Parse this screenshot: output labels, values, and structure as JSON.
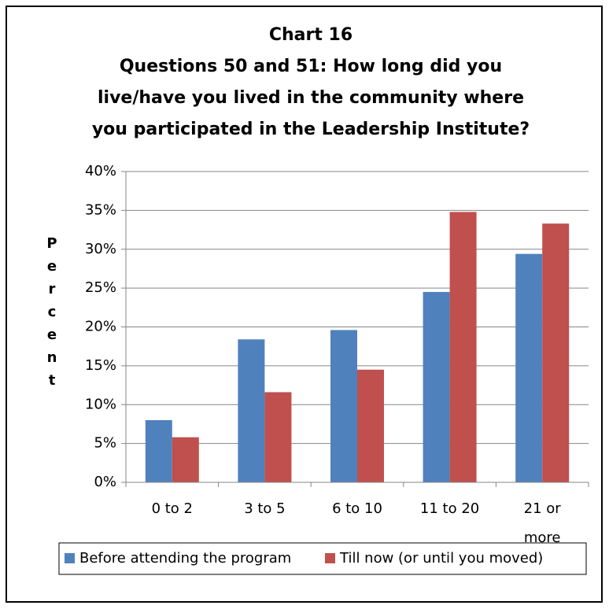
{
  "chart_data": {
    "type": "bar",
    "title": [
      "Chart 16",
      "Questions 50 and 51: How long did you",
      "live/have you lived in the community where",
      "you participated in the Leadership Institute?"
    ],
    "y_label": "Percent",
    "categories": [
      "0 to 2",
      "3 to 5",
      "6 to 10",
      "11 to 20",
      "21 or more"
    ],
    "series": [
      {
        "name": "Before attending the program",
        "color": "#4f81bd",
        "values": [
          8,
          18.4,
          19.6,
          24.5,
          29.4
        ]
      },
      {
        "name": "Till now (or until you moved)",
        "color": "#c0504d",
        "values": [
          5.8,
          11.6,
          14.5,
          34.8,
          33.3
        ]
      }
    ],
    "ylim": [
      0,
      40
    ],
    "yticks": [
      {
        "value": 0,
        "label": "0%"
      },
      {
        "value": 5,
        "label": "5%"
      },
      {
        "value": 10,
        "label": "10%"
      },
      {
        "value": 15,
        "label": "15%"
      },
      {
        "value": 20,
        "label": "20%"
      },
      {
        "value": 25,
        "label": "25%"
      },
      {
        "value": 30,
        "label": "30%"
      },
      {
        "value": 35,
        "label": "35%"
      },
      {
        "value": 40,
        "label": "40%"
      }
    ],
    "grid": true,
    "legend": "bottom"
  }
}
